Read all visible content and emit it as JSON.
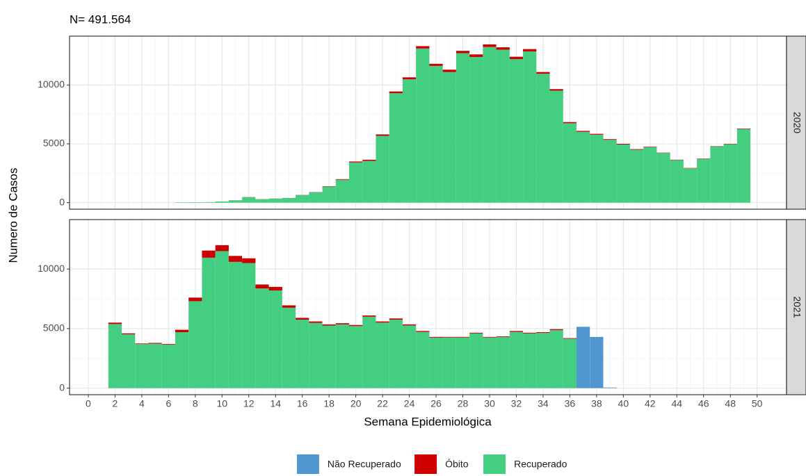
{
  "chart_data": {
    "type": "bar",
    "stacked": true,
    "title": "N= 491.564",
    "xlabel": "Semana Epidemiológica",
    "ylabel": "Numero de Casos",
    "xlim": [
      -1.4,
      52.2
    ],
    "xticks": [
      0,
      2,
      4,
      6,
      8,
      10,
      12,
      14,
      16,
      18,
      20,
      22,
      24,
      26,
      28,
      30,
      32,
      34,
      36,
      38,
      40,
      42,
      44,
      46,
      48,
      50
    ],
    "ylim": [
      -550,
      14150
    ],
    "yticks": [
      0,
      5000,
      10000
    ],
    "grid": true,
    "legend_position": "bottom",
    "panels": [
      {
        "label": "2020",
        "x": [
          7,
          8,
          9,
          10,
          11,
          12,
          13,
          14,
          15,
          16,
          17,
          18,
          19,
          20,
          21,
          22,
          23,
          24,
          25,
          26,
          27,
          28,
          29,
          30,
          31,
          32,
          33,
          34,
          35,
          36,
          37,
          38,
          39,
          40,
          41,
          42,
          43,
          44,
          45,
          46,
          47,
          48,
          49
        ],
        "series": [
          {
            "name": "Óbito",
            "color": "#cc0000",
            "values": [
              0,
              0,
              0,
              0,
              10,
              20,
              10,
              10,
              10,
              20,
              20,
              30,
              50,
              80,
              100,
              120,
              150,
              170,
              200,
              180,
              200,
              200,
              220,
              220,
              200,
              200,
              200,
              150,
              130,
              100,
              80,
              70,
              60,
              60,
              50,
              40,
              30,
              30,
              30,
              30,
              30,
              30,
              40
            ]
          },
          {
            "name": "Recuperado",
            "color": "#44ce82",
            "values": [
              30,
              40,
              50,
              100,
              190,
              450,
              290,
              340,
              390,
              630,
              880,
              1370,
              1950,
              3420,
              3550,
              5680,
              9300,
              10480,
              13100,
              11620,
              11100,
              12700,
              12380,
              13230,
              13000,
              12200,
              12850,
              10950,
              9520,
              6750,
              6020,
              5780,
              5340,
              4940,
              4500,
              4710,
              4220,
              3620,
              2920,
              3720,
              4770,
              4970,
              6260
            ]
          }
        ]
      },
      {
        "label": "2021",
        "x": [
          2,
          3,
          4,
          5,
          6,
          7,
          8,
          9,
          10,
          11,
          12,
          13,
          14,
          15,
          16,
          17,
          18,
          19,
          20,
          21,
          22,
          23,
          24,
          25,
          26,
          27,
          28,
          29,
          30,
          31,
          32,
          33,
          34,
          35,
          36,
          37,
          38,
          39
        ],
        "series": [
          {
            "name": "Não Recuperado",
            "color": "#5097d2",
            "values": [
              null,
              null,
              null,
              null,
              null,
              null,
              null,
              null,
              null,
              null,
              null,
              null,
              null,
              null,
              null,
              null,
              null,
              null,
              null,
              null,
              null,
              null,
              null,
              null,
              null,
              null,
              null,
              null,
              null,
              null,
              null,
              null,
              null,
              null,
              null,
              5150,
              4300,
              50
            ]
          },
          {
            "name": "Óbito",
            "color": "#cc0000",
            "values": [
              120,
              80,
              50,
              60,
              60,
              200,
              300,
              600,
              500,
              500,
              400,
              330,
              300,
              200,
              150,
              120,
              100,
              100,
              90,
              100,
              100,
              100,
              90,
              80,
              60,
              50,
              50,
              60,
              50,
              50,
              80,
              60,
              60,
              80,
              50,
              null,
              null,
              null
            ]
          },
          {
            "name": "Recuperado",
            "color": "#44ce82",
            "values": [
              5380,
              4520,
              3700,
              3740,
              3640,
              4700,
              7300,
              10950,
              11500,
              10600,
              10500,
              8370,
              8200,
              6750,
              5750,
              5480,
              5250,
              5350,
              5210,
              6000,
              5500,
              5750,
              5260,
              4720,
              4240,
              4250,
              4250,
              4590,
              4250,
              4300,
              4720,
              4590,
              4640,
              4870,
              4150,
              null,
              null,
              null
            ]
          }
        ]
      }
    ]
  }
}
